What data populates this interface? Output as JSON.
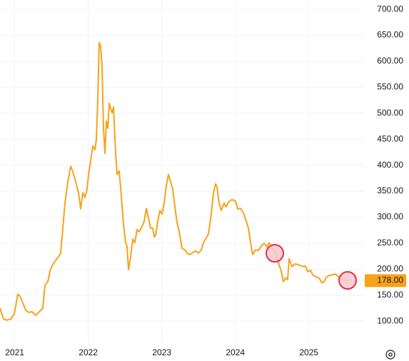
{
  "chart_data": {
    "type": "line",
    "x": [
      2020.8,
      2020.849,
      2020.897,
      2020.946,
      2020.994,
      2021.043,
      2021.072,
      2021.111,
      2021.149,
      2021.188,
      2021.237,
      2021.285,
      2021.334,
      2021.382,
      2021.411,
      2021.45,
      2021.479,
      2021.509,
      2021.557,
      2021.596,
      2021.625,
      2021.654,
      2021.683,
      2021.722,
      2021.761,
      2021.79,
      2021.829,
      2021.868,
      2021.897,
      2021.926,
      2021.955,
      2021.984,
      2022.004,
      2022.033,
      2022.062,
      2022.091,
      2022.11,
      2022.13,
      2022.149,
      2022.169,
      2022.188,
      2022.207,
      2022.227,
      2022.246,
      2022.266,
      2022.285,
      2022.304,
      2022.324,
      2022.343,
      2022.372,
      2022.392,
      2022.421,
      2022.45,
      2022.479,
      2022.508,
      2022.528,
      2022.547,
      2022.576,
      2022.605,
      2022.634,
      2022.663,
      2022.693,
      2022.722,
      2022.761,
      2022.79,
      2022.819,
      2022.848,
      2022.877,
      2022.897,
      2022.916,
      2022.945,
      2022.974,
      2023.003,
      2023.032,
      2023.061,
      2023.091,
      2023.12,
      2023.149,
      2023.178,
      2023.207,
      2023.236,
      2023.275,
      2023.314,
      2023.343,
      2023.382,
      2023.421,
      2023.459,
      2023.498,
      2023.537,
      2023.566,
      2023.595,
      2023.634,
      2023.673,
      2023.702,
      2023.731,
      2023.751,
      2023.78,
      2023.809,
      2023.848,
      2023.877,
      2023.906,
      2023.954,
      2024.003,
      2024.032,
      2024.071,
      2024.11,
      2024.149,
      2024.178,
      2024.207,
      2024.236,
      2024.275,
      2024.314,
      2024.352,
      2024.391,
      2024.43,
      2024.459,
      2024.488,
      2024.517,
      2024.547,
      2024.585,
      2024.624,
      2024.653,
      2024.682,
      2024.711,
      2024.731,
      2024.77,
      2024.809,
      2024.847,
      2024.886,
      2024.925,
      2024.954,
      2024.983,
      2025.022,
      2025.051,
      2025.1,
      2025.139,
      2025.177,
      2025.207,
      2025.236,
      2025.274,
      2025.323,
      2025.362,
      2025.41,
      2025.459,
      2025.508,
      2025.546
    ],
    "series": [
      {
        "color": "#f7a21b",
        "values": [
          125,
          104,
          102,
          104,
          114,
          152,
          148,
          135,
          121,
          117,
          118,
          111,
          118,
          125,
          169,
          176,
          196,
          207,
          217,
          224,
          231,
          279,
          327,
          368,
          398,
          388,
          368,
          347,
          316,
          347,
          338,
          354,
          382,
          409,
          437,
          430,
          450,
          526,
          636,
          629,
          588,
          471,
          423,
          485,
          471,
          519,
          509,
          501,
          512,
          423,
          382,
          389,
          340,
          286,
          251,
          244,
          199,
          224,
          258,
          251,
          276,
          272,
          279,
          292,
          317,
          299,
          279,
          279,
          262,
          265,
          292,
          313,
          306,
          327,
          361,
          382,
          368,
          354,
          320,
          290,
          272,
          240,
          237,
          231,
          228,
          232,
          235,
          231,
          237,
          251,
          258,
          268,
          306,
          347,
          364,
          358,
          327,
          313,
          327,
          320,
          329,
          334,
          331,
          316,
          317,
          309,
          292,
          279,
          251,
          228,
          237,
          236,
          244,
          250,
          243,
          251,
          244,
          237,
          231,
          213,
          196,
          176,
          183,
          180,
          220,
          205,
          210,
          209,
          207,
          205,
          206,
          195,
          198,
          189,
          185,
          183,
          174,
          176,
          184,
          188,
          189,
          191,
          184,
          180,
          178,
          178
        ]
      }
    ],
    "last_price": {
      "value": 178,
      "label": "178.00"
    },
    "xlim": [
      2020.8,
      2025.75
    ],
    "xticks": [
      2021,
      2022,
      2023,
      2024,
      2025
    ],
    "ylim": [
      59,
      718
    ],
    "yticks": [
      {
        "value": 100,
        "label": "100.00"
      },
      {
        "value": 150,
        "label": "150.00"
      },
      {
        "value": 200,
        "label": "200.00"
      },
      {
        "value": 250,
        "label": "250.00"
      },
      {
        "value": 300,
        "label": "300.00"
      },
      {
        "value": 350,
        "label": "350.00"
      },
      {
        "value": 400,
        "label": "400.00"
      },
      {
        "value": 450,
        "label": "450.00"
      },
      {
        "value": 500,
        "label": "500.00"
      },
      {
        "value": 550,
        "label": "550.00"
      },
      {
        "value": 600,
        "label": "600.00"
      },
      {
        "value": 650,
        "label": "650.00"
      },
      {
        "value": 700,
        "label": "700.00"
      }
    ],
    "grid": true
  }
}
